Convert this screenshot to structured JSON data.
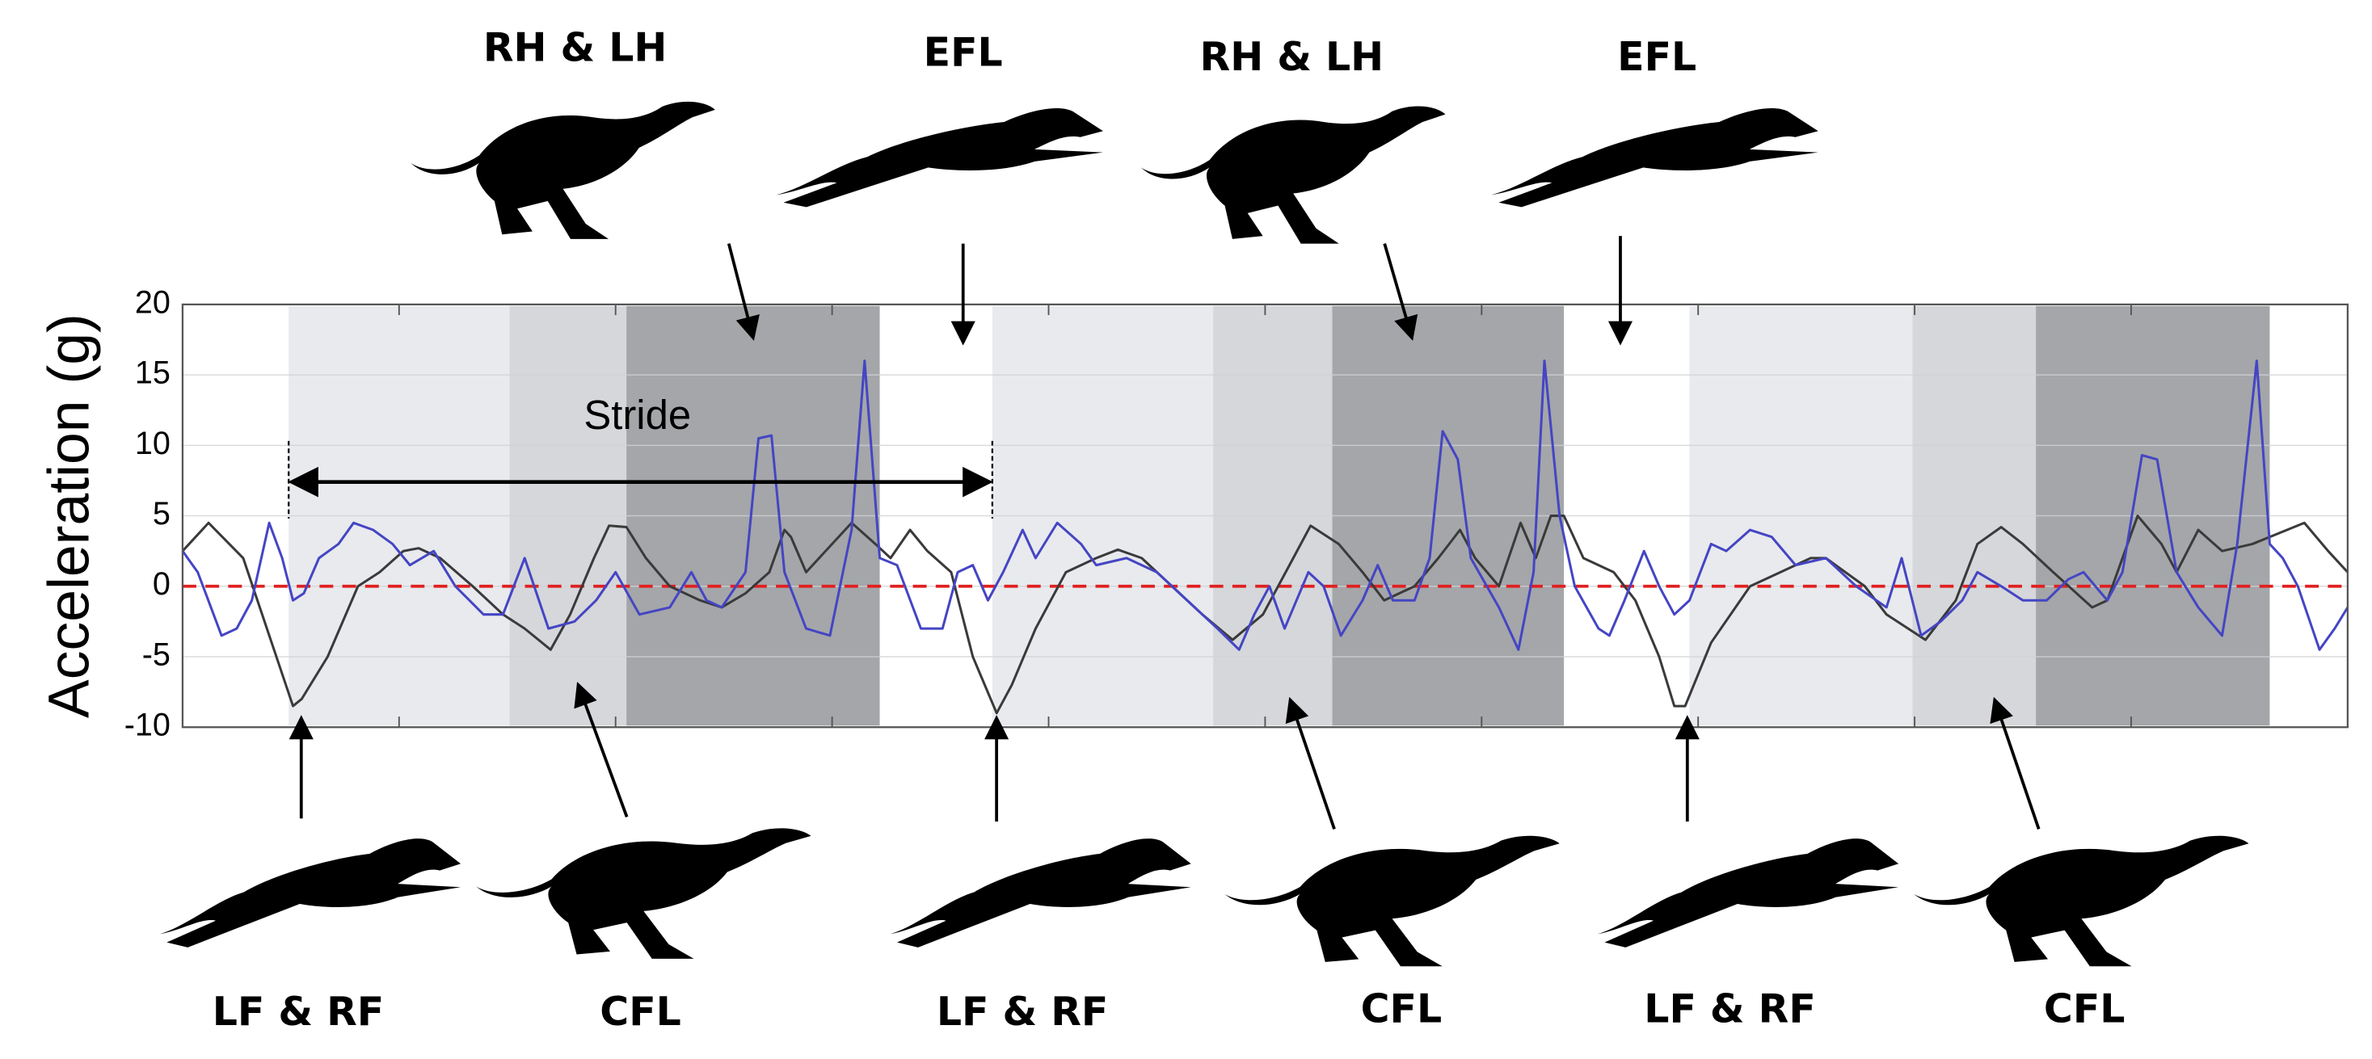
{
  "chart_data": {
    "type": "line",
    "ylabel": "Acceleration (g)",
    "xlim": [
      0,
      10
    ],
    "xticks": [
      1,
      2,
      3,
      4,
      5,
      6,
      7,
      8,
      9
    ],
    "ylim": [
      -10,
      20
    ],
    "yticks": [
      -10,
      -5,
      0,
      5,
      10,
      15,
      20
    ],
    "grid": true,
    "zero_line": {
      "value": 0,
      "color": "#e02020"
    },
    "phases": [
      {
        "start": 0.49,
        "end": 1.51,
        "color": "#e8eaed"
      },
      {
        "start": 1.51,
        "end": 2.05,
        "color": "#d5d7da"
      },
      {
        "start": 2.05,
        "end": 3.22,
        "color": "#a4a6a9"
      },
      {
        "start": 3.74,
        "end": 4.76,
        "color": "#e8eaed"
      },
      {
        "start": 4.76,
        "end": 5.31,
        "color": "#d5d7da"
      },
      {
        "start": 5.31,
        "end": 6.38,
        "color": "#a4a6a9"
      },
      {
        "start": 6.96,
        "end": 7.99,
        "color": "#e8eaed"
      },
      {
        "start": 7.99,
        "end": 8.56,
        "color": "#d5d7da"
      },
      {
        "start": 8.56,
        "end": 9.64,
        "color": "#a4a6a9"
      }
    ],
    "stride": {
      "label": "Stride",
      "start": 0.49,
      "end": 3.74,
      "y": 7.4
    },
    "top_labels": [
      "RH & LH",
      "EFL",
      "RH & LH",
      "EFL"
    ],
    "bottom_labels": [
      "LF & RF",
      "CFL",
      "LF & RF",
      "CFL",
      "LF & RF",
      "CFL"
    ],
    "series": [
      {
        "color": "#3a3a3a",
        "x": [
          0,
          0.12,
          0.28,
          0.51,
          0.55,
          0.67,
          0.81,
          0.91,
          1.02,
          1.09,
          1.19,
          1.34,
          1.48,
          1.58,
          1.7,
          1.79,
          1.9,
          1.97,
          2.05,
          2.14,
          2.25,
          2.39,
          2.49,
          2.6,
          2.71,
          2.78,
          2.81,
          2.88,
          3.09,
          3.2,
          3.27,
          3.36,
          3.44,
          3.55,
          3.65,
          3.76,
          3.83,
          3.94,
          4.08,
          4.22,
          4.32,
          4.43,
          4.57,
          4.71,
          4.85,
          4.99,
          5.13,
          5.21,
          5.34,
          5.45,
          5.55,
          5.69,
          5.8,
          5.9,
          5.97,
          6.08,
          6.18,
          6.25,
          6.32,
          6.38,
          6.47,
          6.61,
          6.71,
          6.82,
          6.89,
          6.94,
          7.06,
          7.24,
          7.38,
          7.52,
          7.59,
          7.77,
          7.87,
          8.05,
          8.19,
          8.29,
          8.4,
          8.5,
          8.64,
          8.82,
          8.89,
          8.96,
          9.03,
          9.14,
          9.21,
          9.31,
          9.42,
          9.56,
          9.8,
          9.91,
          10
        ],
        "values": [
          2.5,
          4.5,
          2,
          -8.5,
          -8,
          -5,
          0,
          1,
          2.5,
          2.7,
          2,
          0,
          -2,
          -3,
          -4.5,
          -2,
          2,
          4.3,
          4.2,
          2,
          0,
          -1,
          -1.5,
          -0.5,
          1,
          4,
          3.5,
          1,
          4.5,
          3,
          2,
          4,
          2.5,
          1,
          -5,
          -9,
          -7,
          -3,
          1,
          2,
          2.6,
          2,
          0,
          -2,
          -3.8,
          -2,
          2,
          4.3,
          3,
          1,
          -1,
          0,
          2,
          4,
          2,
          0,
          4.5,
          2,
          5,
          5,
          2,
          1,
          -1,
          -5,
          -8.5,
          -8.5,
          -4,
          0,
          1,
          2,
          2,
          0,
          -2,
          -3.8,
          -1,
          3,
          4.2,
          3,
          1,
          -1.5,
          -1,
          2,
          5,
          3,
          1,
          4,
          2.5,
          3,
          4.5,
          2.5,
          1
        ]
      },
      {
        "color": "#4545c4",
        "x": [
          0,
          0.07,
          0.18,
          0.25,
          0.32,
          0.4,
          0.46,
          0.51,
          0.56,
          0.63,
          0.72,
          0.79,
          0.88,
          0.97,
          1.05,
          1.16,
          1.26,
          1.39,
          1.48,
          1.58,
          1.69,
          1.81,
          1.91,
          2.0,
          2.11,
          2.25,
          2.35,
          2.42,
          2.49,
          2.6,
          2.66,
          2.72,
          2.78,
          2.88,
          2.99,
          3.09,
          3.15,
          3.22,
          3.3,
          3.41,
          3.51,
          3.58,
          3.65,
          3.72,
          3.79,
          3.88,
          3.94,
          4.04,
          4.15,
          4.22,
          4.36,
          4.5,
          4.64,
          4.78,
          4.88,
          4.95,
          5.02,
          5.09,
          5.2,
          5.27,
          5.35,
          5.45,
          5.52,
          5.59,
          5.69,
          5.76,
          5.82,
          5.89,
          5.95,
          6.08,
          6.17,
          6.24,
          6.29,
          6.36,
          6.43,
          6.54,
          6.59,
          6.66,
          6.75,
          6.82,
          6.89,
          6.96,
          7.06,
          7.13,
          7.24,
          7.34,
          7.45,
          7.59,
          7.73,
          7.87,
          7.94,
          8.03,
          8.12,
          8.22,
          8.29,
          8.4,
          8.5,
          8.61,
          8.71,
          8.78,
          8.89,
          8.96,
          9.05,
          9.12,
          9.21,
          9.31,
          9.42,
          9.49,
          9.58,
          9.64,
          9.7,
          9.77,
          9.87,
          9.94,
          10
        ],
        "values": [
          2.5,
          1,
          -3.5,
          -3,
          -1,
          4.5,
          2,
          -1,
          -0.5,
          2,
          3,
          4.5,
          4,
          3,
          1.5,
          2.5,
          0,
          -2,
          -2,
          2,
          -3,
          -2.5,
          -1,
          1,
          -2,
          -1.5,
          1,
          -1,
          -1.5,
          1,
          10.5,
          10.7,
          1,
          -3,
          -3.5,
          4,
          16,
          2,
          1.5,
          -3,
          -3,
          1,
          1.5,
          -1,
          1,
          4,
          2,
          4.5,
          3,
          1.5,
          2,
          1,
          -1,
          -3,
          -4.5,
          -2,
          0,
          -3,
          1,
          0,
          -3.5,
          -1,
          1.5,
          -1,
          -1,
          2,
          11,
          9,
          2,
          -1.5,
          -4.5,
          1,
          16,
          5,
          0,
          -3,
          -3.5,
          -1,
          2.5,
          0,
          -2,
          -1,
          3,
          2.5,
          4,
          3.5,
          1.5,
          2,
          0,
          -1.5,
          2,
          -3.5,
          -2.5,
          -1,
          1,
          0,
          -1,
          -1,
          0.5,
          1,
          -1,
          1,
          9.3,
          9,
          1,
          -1.5,
          -3.5,
          3,
          16,
          3,
          2,
          0,
          -4.5,
          -3,
          -1.5
        ]
      }
    ]
  }
}
